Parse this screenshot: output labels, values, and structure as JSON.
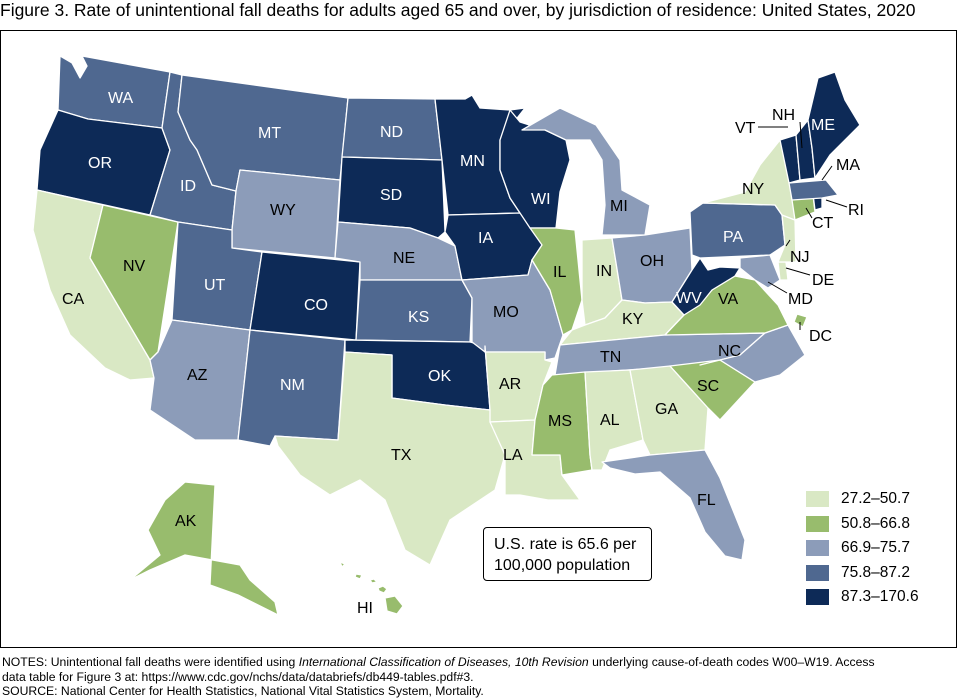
{
  "title": "Figure 3. Rate of unintentional fall deaths for adults aged 65 and over, by jurisdiction of residence: United States, 2020",
  "colors": {
    "c1": "#d9e8c4",
    "c2": "#98bc6d",
    "c3": "#8c9cb9",
    "c4": "#4f6890",
    "c5": "#0d2a57"
  },
  "legend": [
    {
      "label": "27.2–50.7",
      "color_class": "c1"
    },
    {
      "label": "50.8–66.8",
      "color_class": "c2"
    },
    {
      "label": "66.9–75.7",
      "color_class": "c3"
    },
    {
      "label": "75.8–87.2",
      "color_class": "c4"
    },
    {
      "label": "87.3–170.6",
      "color_class": "c5"
    }
  ],
  "rate_box": {
    "line1": "U.S. rate is 65.6 per",
    "line2": "100,000 population"
  },
  "states": {
    "WA": "c4",
    "OR": "c5",
    "CA": "c1",
    "NV": "c2",
    "ID": "c4",
    "MT": "c4",
    "WY": "c3",
    "UT": "c4",
    "AZ": "c3",
    "CO": "c5",
    "NM": "c4",
    "ND": "c4",
    "SD": "c5",
    "NE": "c3",
    "KS": "c4",
    "OK": "c5",
    "TX": "c1",
    "MN": "c5",
    "IA": "c5",
    "MO": "c3",
    "AR": "c1",
    "LA": "c1",
    "WI": "c5",
    "IL": "c2",
    "MI": "c3",
    "IN": "c1",
    "OH": "c3",
    "KY": "c1",
    "TN": "c3",
    "MS": "c2",
    "AL": "c1",
    "GA": "c1",
    "FL": "c3",
    "SC": "c2",
    "NC": "c3",
    "VA": "c2",
    "WV": "c5",
    "PA": "c4",
    "NY": "c1",
    "VT": "c5",
    "NH": "c5",
    "ME": "c5",
    "MA": "c4",
    "RI": "c5",
    "CT": "c2",
    "NJ": "c1",
    "DE": "c1",
    "MD": "c3",
    "DC": "c2",
    "AK": "c2",
    "HI": "c2"
  },
  "notes": {
    "line1_a": "NOTES: Unintentional fall deaths were identified using ",
    "line1_italic": "International Classification of Diseases, 10th Revision",
    "line1_b": " underlying cause-of-death codes W00–W19. Access",
    "line2": "data table for Figure 3 at: https://www.cdc.gov/nchs/data/databriefs/db449-tables.pdf#3.",
    "line3": "SOURCE: National Center for Health Statistics, National Vital Statistics System, Mortality."
  }
}
